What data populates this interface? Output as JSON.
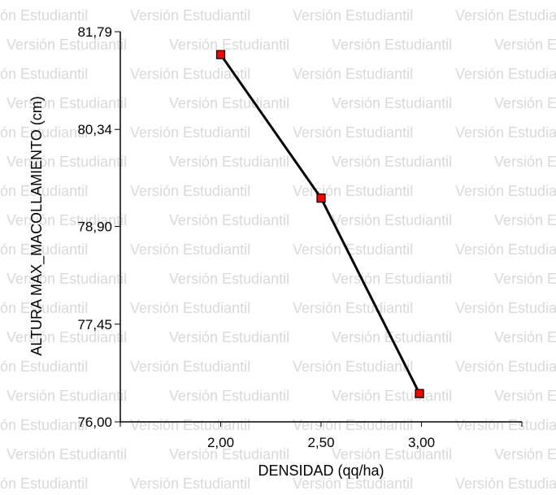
{
  "watermark": {
    "text": "Versión Estudiantil"
  },
  "chart_data": {
    "type": "line",
    "x": [
      2.0,
      2.5,
      2.99
    ],
    "y": [
      81.45,
      79.32,
      76.42
    ],
    "xlabel": "DENSIDAD (qq/ha)",
    "ylabel": "ALTURA MAX_MACOLLAMIENTO (cm)",
    "xlim": [
      1.5,
      3.5
    ],
    "ylim": [
      76.0,
      81.79
    ],
    "x_ticks": [
      2.0,
      2.5,
      3.0
    ],
    "x_tick_labels": [
      "2,00",
      "2,50",
      "3,00"
    ],
    "y_ticks": [
      76.0,
      77.45,
      78.9,
      80.34,
      81.79
    ],
    "y_tick_labels": [
      "76,00",
      "77,45",
      "78,90",
      "80,34",
      "81,79"
    ],
    "line_color": "#000000",
    "marker_color": "#ff0000",
    "marker_edge_color": "#000000",
    "grid": false,
    "legend": "none"
  }
}
